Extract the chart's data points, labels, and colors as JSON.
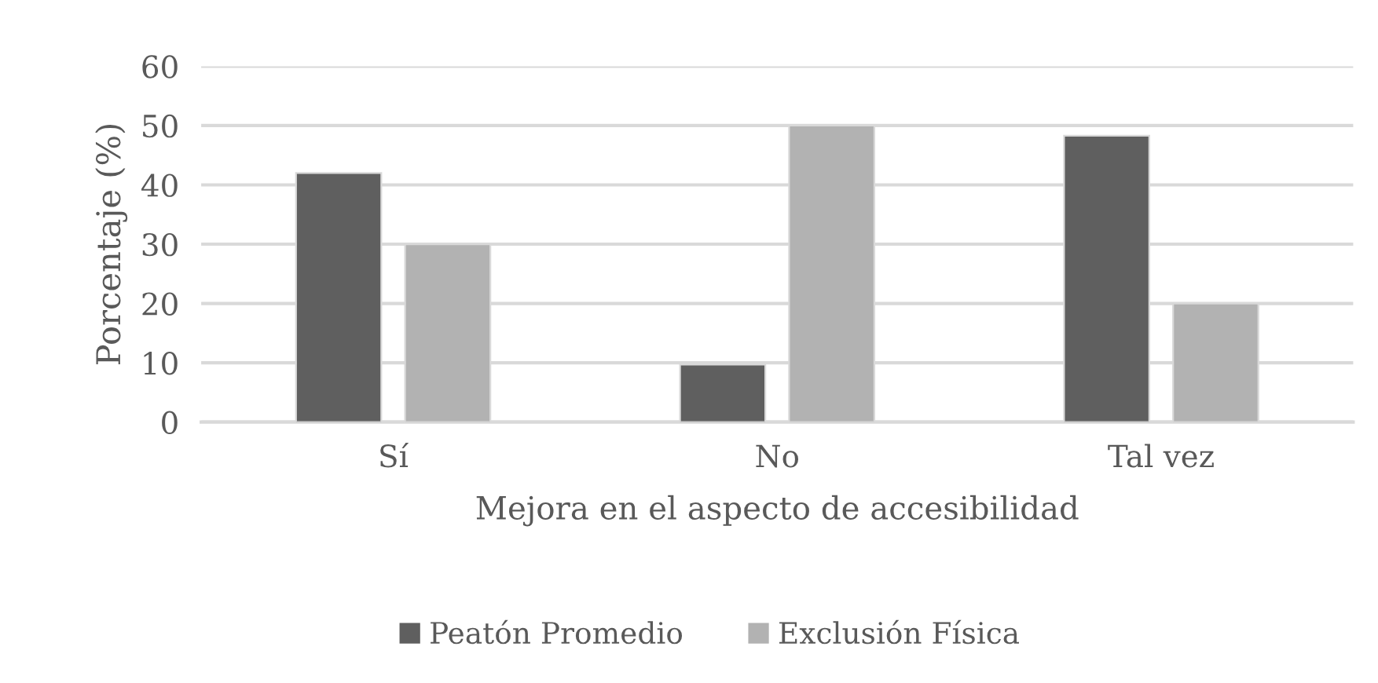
{
  "chart_data": {
    "type": "bar",
    "xlabel": "Mejora en el aspecto de accesibilidad",
    "ylabel": "Porcentaje (%)",
    "categories": [
      "Sí",
      "No",
      "Tal vez"
    ],
    "series": [
      {
        "name": "Peatón Promedio",
        "color": "#5f5f5f",
        "values": [
          42,
          9.7,
          48.3
        ]
      },
      {
        "name": "Exclusión Física",
        "color": "#b2b2b2",
        "values": [
          30,
          50,
          20
        ]
      }
    ],
    "ylim": [
      0,
      60
    ],
    "yticks": [
      0,
      10,
      20,
      30,
      40,
      50,
      60
    ],
    "grid": "y",
    "legend": "bottom"
  }
}
